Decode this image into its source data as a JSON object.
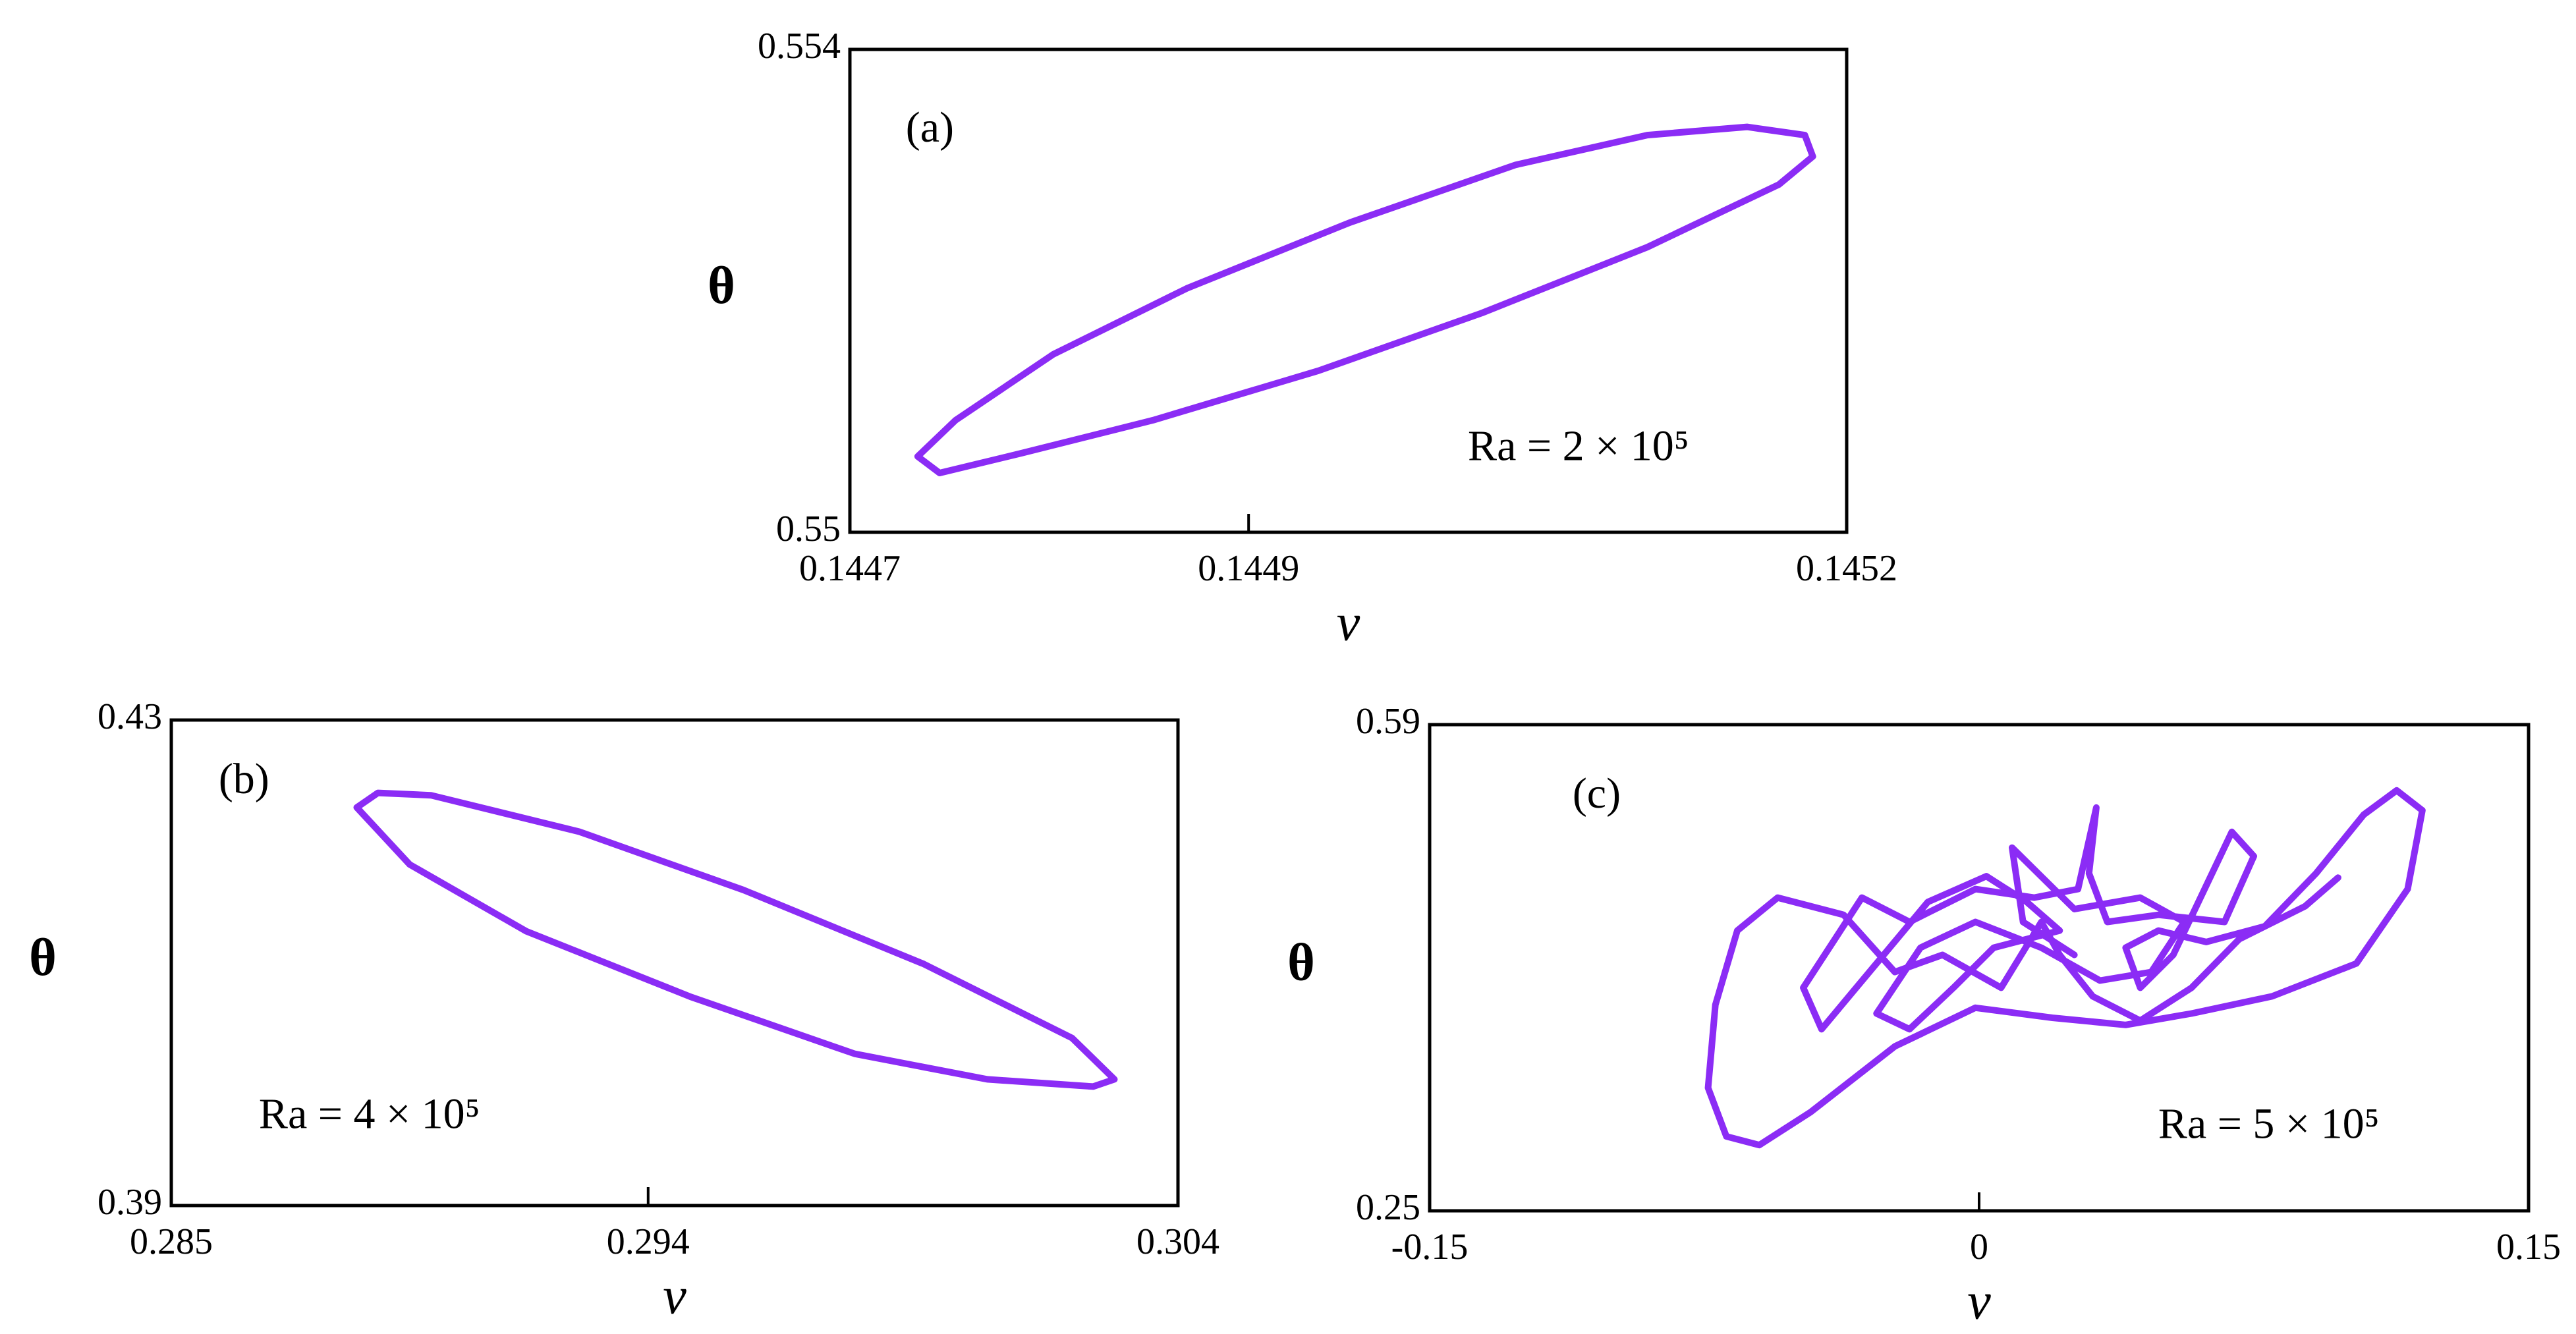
{
  "chart_data": [
    {
      "type": "line",
      "annotation": "(a)",
      "text": "Ra = 2 × 10⁵",
      "xlabel": "v",
      "ylabel": "θ",
      "xlim": [
        0.1447,
        0.1452
      ],
      "xticks": [
        0.1447,
        0.1449,
        0.1452
      ],
      "ylim": [
        0.55,
        0.554
      ],
      "yticks": [
        0.55,
        0.554
      ],
      "series": [
        {
          "color": "#8b2cf5",
          "x": [
            0.144734,
            0.144753,
            0.144802,
            0.144869,
            0.144951,
            0.145034,
            0.1451,
            0.14515,
            0.145179,
            0.145183,
            0.145166,
            0.1451,
            0.145017,
            0.144935,
            0.144852,
            0.144786,
            0.144745,
            0.144734
          ],
          "values": [
            0.550628,
            0.550928,
            0.551474,
            0.55202,
            0.552567,
            0.553044,
            0.55329,
            0.553358,
            0.55329,
            0.553113,
            0.552881,
            0.552362,
            0.551816,
            0.551338,
            0.550928,
            0.550655,
            0.550491,
            0.550628
          ]
        }
      ]
    },
    {
      "type": "line",
      "annotation": "(b)",
      "text": "Ra = 4 × 10⁵",
      "xlabel": "v",
      "ylabel": "θ",
      "xlim": [
        0.285,
        0.304
      ],
      "xticks": [
        0.285,
        0.294,
        0.304
      ],
      "ylim": [
        0.39,
        0.43
      ],
      "yticks": [
        0.39,
        0.43
      ],
      "series": [
        {
          "color": "#8b2cf5",
          "x": [
            0.2885,
            0.2889,
            0.2899,
            0.2927,
            0.2958,
            0.2992,
            0.302,
            0.3028,
            0.3024,
            0.3004,
            0.2979,
            0.2948,
            0.2917,
            0.2895,
            0.2885
          ],
          "values": [
            0.4228,
            0.424,
            0.4238,
            0.4208,
            0.416,
            0.4099,
            0.4038,
            0.4004,
            0.3998,
            0.4004,
            0.4025,
            0.4072,
            0.4126,
            0.4181,
            0.4228
          ]
        }
      ]
    },
    {
      "type": "line",
      "annotation": "(c)",
      "text": "Ra = 5 × 10⁵",
      "xlabel": "v",
      "ylabel": "θ",
      "xlim": [
        -0.15,
        0.15
      ],
      "xticks": [
        -0.15,
        0,
        0.15
      ],
      "ylim": [
        0.25,
        0.59
      ],
      "yticks": [
        0.25,
        0.59
      ],
      "series": [
        {
          "color": "#8b2cf5",
          "x": [
            0.098,
            0.089,
            0.071,
            0.058,
            0.044,
            0.031,
            0.022,
            0.017,
            0.006,
            -0.01,
            -0.023,
            -0.037,
            -0.055,
            -0.066,
            -0.072,
            -0.074,
            -0.069,
            -0.06,
            -0.046,
            -0.023,
            -0.001,
            0.02,
            0.04,
            0.058,
            0.08,
            0.103,
            0.117,
            0.121,
            0.114,
            0.105,
            0.092,
            0.078,
            0.062,
            0.049,
            0.04,
            0.044,
            0.053,
            0.069,
            0.075,
            0.067,
            0.049,
            0.035,
            0.03,
            0.032,
            0.027,
            0.015,
            -0.001,
            -0.019,
            -0.032,
            -0.048,
            -0.043,
            -0.028,
            -0.014,
            0.002,
            0.013,
            0.022,
            0.004,
            -0.007,
            -0.019,
            -0.028,
            -0.016,
            -0.001,
            0.017,
            0.033,
            0.047,
            0.056,
            0.044,
            0.026,
            0.009,
            0.012,
            0.026
          ],
          "values": [
            0.483,
            0.463,
            0.44,
            0.406,
            0.383,
            0.4,
            0.429,
            0.452,
            0.406,
            0.429,
            0.417,
            0.457,
            0.469,
            0.446,
            0.394,
            0.336,
            0.302,
            0.296,
            0.319,
            0.365,
            0.392,
            0.385,
            0.38,
            0.388,
            0.4,
            0.423,
            0.475,
            0.53,
            0.544,
            0.527,
            0.486,
            0.449,
            0.438,
            0.446,
            0.434,
            0.406,
            0.429,
            0.515,
            0.498,
            0.452,
            0.457,
            0.452,
            0.486,
            0.532,
            0.475,
            0.469,
            0.475,
            0.452,
            0.469,
            0.406,
            0.377,
            0.423,
            0.466,
            0.484,
            0.466,
            0.446,
            0.434,
            0.406,
            0.377,
            0.388,
            0.434,
            0.452,
            0.434,
            0.411,
            0.417,
            0.452,
            0.469,
            0.461,
            0.504,
            0.452,
            0.429
          ]
        }
      ]
    }
  ]
}
